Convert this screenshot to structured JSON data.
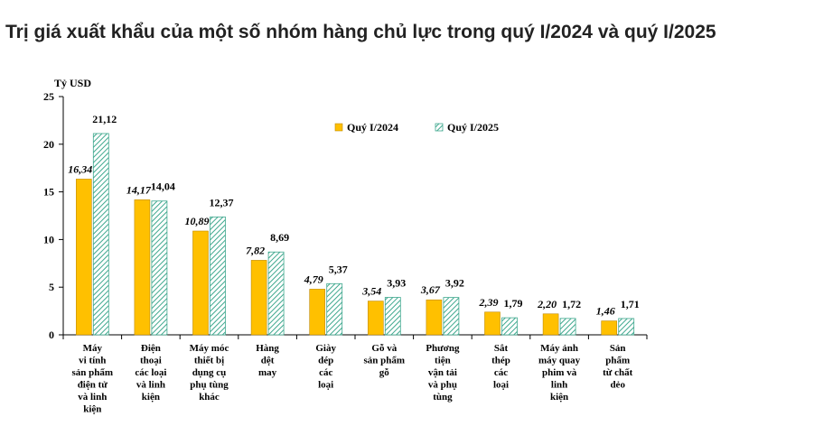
{
  "page": {
    "title": "Trị giá xuất khẩu của một số nhóm hàng chủ lực trong quý I/2024 và quý I/2025"
  },
  "colors": {
    "series_2024": "#FFC000",
    "series_2025_stripe": "#3FA88E",
    "series_2025_bg": "#FFFFFF",
    "axis": "#000000"
  },
  "chart_data": {
    "type": "bar",
    "ylabel": "Tỷ USD",
    "ylim": [
      0,
      25
    ],
    "yticks": [
      "0",
      "5",
      "10",
      "15",
      "20",
      "25"
    ],
    "grid": false,
    "legend_position": "top-right",
    "categories": [
      [
        "Máy",
        "vi tính",
        "sản phẩm",
        "điện tử",
        "và linh",
        "kiện"
      ],
      [
        "Điện",
        "thoại",
        "các loại",
        "và linh",
        "kiện"
      ],
      [
        "Máy móc",
        "thiết bị",
        "dụng cụ",
        "phụ tùng",
        "khác"
      ],
      [
        "Hàng",
        "dệt",
        "may"
      ],
      [
        "Giày",
        "dép",
        "các",
        "loại"
      ],
      [
        "Gỗ và",
        "sản phẩm",
        "gỗ"
      ],
      [
        "Phương",
        "tiện",
        "vận tải",
        "và phụ",
        "tùng"
      ],
      [
        "Sắt",
        "thép",
        "các",
        "loại"
      ],
      [
        "Máy ảnh",
        "máy quay",
        "phim và",
        "linh",
        "kiện"
      ],
      [
        "Sản",
        "phẩm",
        "từ chất",
        "dẻo"
      ]
    ],
    "series": [
      {
        "name": "Quý I/2024",
        "values": [
          16.34,
          14.17,
          10.89,
          7.82,
          4.79,
          3.54,
          3.67,
          2.39,
          2.2,
          1.46
        ],
        "labels": [
          "16,34",
          "14,17",
          "10,89",
          "7,82",
          "4,79",
          "3,54",
          "3,67",
          "2,39",
          "2,20",
          "1,46"
        ]
      },
      {
        "name": "Quý I/2025",
        "values": [
          21.12,
          14.04,
          12.37,
          8.69,
          5.37,
          3.93,
          3.92,
          1.79,
          1.72,
          1.71
        ],
        "labels": [
          "21,12",
          "14,04",
          "12,37",
          "8,69",
          "5,37",
          "3,93",
          "3,92",
          "1,79",
          "1,72",
          "1,71"
        ]
      }
    ]
  }
}
